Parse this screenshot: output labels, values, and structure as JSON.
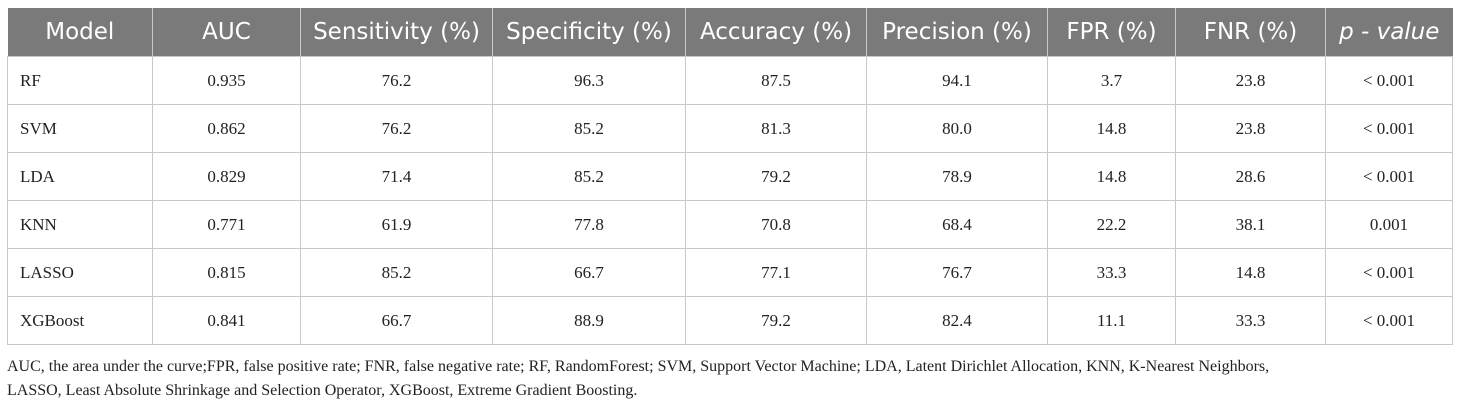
{
  "table": {
    "headers": [
      "Model",
      "AUC",
      "Sensitivity (%)",
      "Specificity (%)",
      "Accuracy (%)",
      "Precision (%)",
      "FPR (%)",
      "FNR (%)",
      "p - value"
    ],
    "header_bg": "#7a7a7a",
    "rows": [
      [
        "RF",
        "0.935",
        "76.2",
        "96.3",
        "87.5",
        "94.1",
        "3.7",
        "23.8",
        "< 0.001"
      ],
      [
        "SVM",
        "0.862",
        "76.2",
        "85.2",
        "81.3",
        "80.0",
        "14.8",
        "23.8",
        "< 0.001"
      ],
      [
        "LDA",
        "0.829",
        "71.4",
        "85.2",
        "79.2",
        "78.9",
        "14.8",
        "28.6",
        "< 0.001"
      ],
      [
        "KNN",
        "0.771",
        "61.9",
        "77.8",
        "70.8",
        "68.4",
        "22.2",
        "38.1",
        "0.001"
      ],
      [
        "LASSO",
        "0.815",
        "85.2",
        "66.7",
        "77.1",
        "76.7",
        "33.3",
        "14.8",
        "< 0.001"
      ],
      [
        "XGBoost",
        "0.841",
        "66.7",
        "88.9",
        "79.2",
        "82.4",
        "11.1",
        "33.3",
        "< 0.001"
      ]
    ]
  },
  "footnote": {
    "line1": "AUC, the area under the curve;FPR, false positive rate; FNR, false negative rate; RF, RandomForest; SVM, Support Vector Machine; LDA, Latent Dirichlet Allocation, KNN, K-Nearest Neighbors,",
    "line2": "LASSO, Least Absolute Shrinkage and Selection Operator, XGBoost, Extreme Gradient Boosting."
  }
}
